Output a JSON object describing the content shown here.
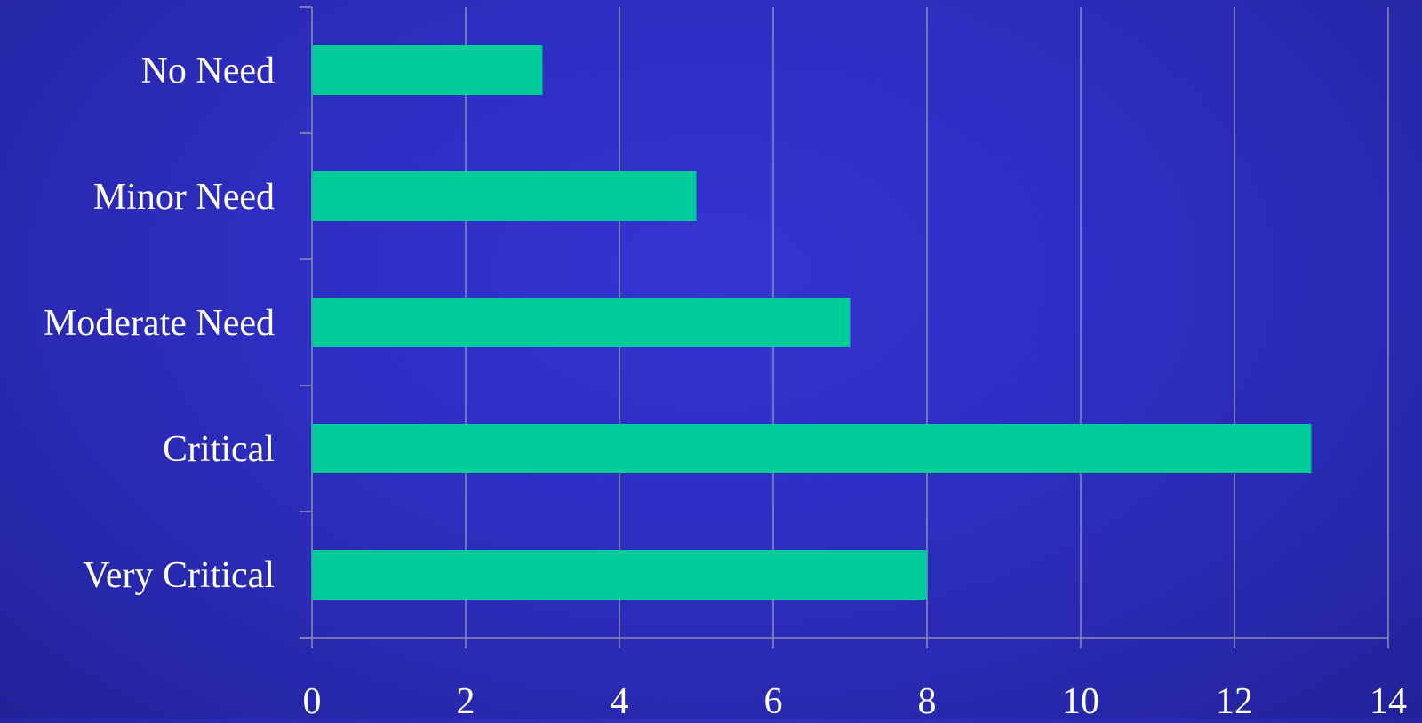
{
  "chart_data": {
    "type": "bar",
    "orientation": "horizontal",
    "categories": [
      "No Need",
      "Minor Need",
      "Moderate Need",
      "Critical",
      "Very Critical"
    ],
    "values": [
      3,
      5,
      7,
      13,
      8
    ],
    "xlim": [
      0,
      14
    ],
    "xticks": [
      "0",
      "2",
      "4",
      "6",
      "8",
      "10",
      "12",
      "14"
    ],
    "grid": "vertical",
    "legend": "none"
  },
  "colors": {
    "bar": "#00cc99",
    "text": "#ffffff",
    "gridline": "#8c8cb4",
    "axis": "#8c8cb4"
  }
}
